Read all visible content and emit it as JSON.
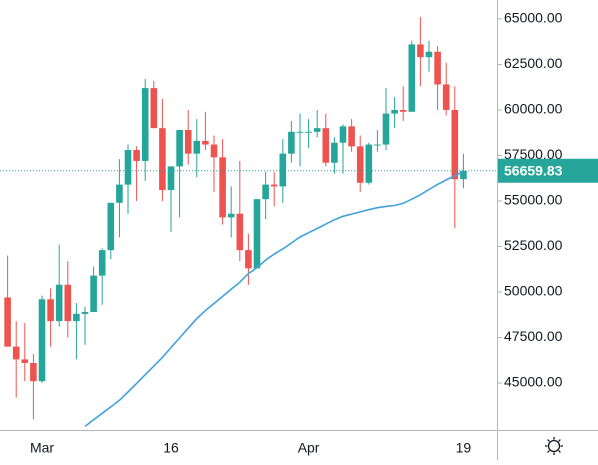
{
  "chart_data": {
    "type": "candlestick",
    "categories": [
      null,
      null,
      null,
      null,
      "Mar",
      null,
      null,
      null,
      null,
      null,
      null,
      null,
      null,
      null,
      null,
      null,
      null,
      null,
      null,
      "16",
      null,
      null,
      null,
      null,
      null,
      null,
      null,
      null,
      null,
      null,
      null,
      null,
      null,
      null,
      null,
      "Apr",
      null,
      null,
      null,
      null,
      null,
      null,
      null,
      null,
      null,
      null,
      null,
      null,
      null,
      null,
      null,
      null,
      null,
      "19"
    ],
    "open": [
      49700,
      47000,
      46300,
      46100,
      45100,
      49600,
      48400,
      50400,
      48400,
      48800,
      48900,
      50900,
      52300,
      54900,
      55900,
      57800,
      57200,
      61200,
      59000,
      55600,
      56900,
      58900,
      57600,
      58300,
      58100,
      57400,
      54100,
      54300,
      52300,
      51300,
      55100,
      55900,
      55800,
      57600,
      58800,
      58800,
      58800,
      59000,
      57100,
      58200,
      59100,
      58000,
      56000,
      58100,
      58100,
      59800,
      60000,
      59900,
      63600,
      62900,
      63200,
      61400,
      60000,
      56200
    ],
    "high": [
      52000,
      48400,
      48300,
      46600,
      49800,
      50200,
      52600,
      51700,
      49400,
      49200,
      51400,
      52400,
      54900,
      57300,
      58100,
      58000,
      61700,
      61600,
      60600,
      56900,
      58900,
      60000,
      59500,
      59900,
      58600,
      58400,
      55800,
      57200,
      53200,
      55100,
      56600,
      56600,
      58400,
      59400,
      59800,
      59500,
      60000,
      59800,
      58500,
      59200,
      59500,
      58600,
      58200,
      58900,
      61200,
      60700,
      61300,
      63800,
      65100,
      63800,
      63500,
      62600,
      61300,
      57600
    ],
    "low": [
      47000,
      44200,
      45100,
      43000,
      45000,
      47000,
      48100,
      47500,
      46300,
      47100,
      48900,
      49300,
      51800,
      53000,
      54300,
      55000,
      56100,
      59000,
      55000,
      53300,
      54100,
      57000,
      56300,
      57800,
      55500,
      53700,
      53000,
      51700,
      50400,
      51300,
      54000,
      54700,
      54900,
      57100,
      56900,
      57900,
      58500,
      56900,
      56500,
      56500,
      57700,
      55500,
      55900,
      57700,
      57800,
      59000,
      59400,
      59900,
      61300,
      62100,
      60000,
      59700,
      53500,
      55700
    ],
    "close": [
      47000,
      46300,
      46100,
      45100,
      49600,
      48400,
      50400,
      48400,
      48800,
      48900,
      50900,
      52300,
      54900,
      55900,
      57800,
      57200,
      61200,
      59000,
      55600,
      56900,
      58900,
      57600,
      58300,
      58100,
      57400,
      54100,
      54300,
      52300,
      51300,
      55100,
      55900,
      55800,
      57600,
      58800,
      58800,
      58800,
      59000,
      57100,
      58200,
      59100,
      58000,
      56000,
      58100,
      58100,
      59800,
      60000,
      59900,
      63600,
      62900,
      63200,
      61400,
      60000,
      56200,
      56660
    ],
    "up_color": "#26a69a",
    "down_color": "#ef5350",
    "moving_average": {
      "color": "#3fa2dc",
      "values": [
        null,
        null,
        null,
        null,
        null,
        null,
        null,
        null,
        null,
        42620,
        42980,
        43340,
        43690,
        44050,
        44510,
        44980,
        45460,
        45930,
        46410,
        46950,
        47480,
        48010,
        48540,
        48980,
        49370,
        49760,
        50150,
        50540,
        51010,
        51340,
        51750,
        52080,
        52360,
        52690,
        53020,
        53260,
        53490,
        53730,
        53970,
        54160,
        54280,
        54400,
        54520,
        54630,
        54700,
        54750,
        54870,
        55100,
        55340,
        55630,
        55910,
        56160,
        56390,
        56620
      ]
    },
    "last_price": {
      "value": 56659.83,
      "label": "56659.83"
    },
    "ylim": [
      42420,
      66040
    ],
    "yticks": [
      {
        "value": 45000,
        "label": "45000.00"
      },
      {
        "value": 47500,
        "label": "47500.00"
      },
      {
        "value": 50000,
        "label": "50000.00"
      },
      {
        "value": 52500,
        "label": "52500.00"
      },
      {
        "value": 55000,
        "label": "55000.00"
      },
      {
        "value": 57500,
        "label": "57500.00"
      },
      {
        "value": 60000,
        "label": "60000.00"
      },
      {
        "value": 62500,
        "label": "62500.00"
      },
      {
        "value": 65000,
        "label": "65000.00"
      }
    ]
  }
}
